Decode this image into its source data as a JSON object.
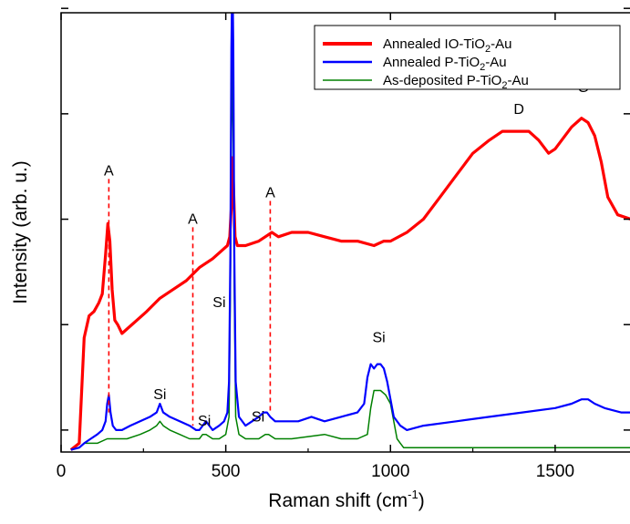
{
  "chart_data": {
    "type": "line",
    "title": "",
    "xlabel": "Raman shift (cm",
    "xlabel_sup": "-1",
    "xlabel_close": ")",
    "ylabel": "Intensity (arb. u.)",
    "xlim": [
      0,
      1730
    ],
    "ylim": [
      0,
      100
    ],
    "x_ticks": [
      0,
      500,
      1000,
      1500
    ],
    "x_tick_labels": [
      "0",
      "500",
      "1000",
      "1500"
    ],
    "y_tick_labels_shown": false,
    "grid": false,
    "legend_position": "top-right",
    "series": [
      {
        "name_parts": [
          "Annealed IO-TiO",
          "2",
          "-Au"
        ],
        "color": "#ff0000",
        "x": [
          30,
          55,
          70,
          85,
          100,
          115,
          125,
          135,
          142,
          148,
          155,
          163,
          172,
          185,
          200,
          230,
          260,
          300,
          340,
          380,
          420,
          460,
          490,
          505,
          512,
          517,
          520,
          523,
          528,
          535,
          560,
          600,
          620,
          640,
          660,
          700,
          750,
          800,
          850,
          900,
          950,
          980,
          1000,
          1050,
          1100,
          1150,
          1200,
          1250,
          1300,
          1340,
          1380,
          1420,
          1450,
          1480,
          1500,
          1520,
          1550,
          1580,
          1600,
          1620,
          1640,
          1660,
          1690,
          1730
        ],
        "y": [
          0.5,
          2,
          26,
          31,
          32,
          34,
          36,
          45,
          52,
          48,
          37,
          30,
          29,
          27,
          28,
          30,
          32,
          35,
          37,
          39,
          42,
          44,
          46,
          47,
          49,
          56,
          67,
          62,
          49,
          47,
          47,
          48,
          49,
          50,
          49,
          50,
          50,
          49,
          48,
          48,
          47,
          48,
          48,
          50,
          53,
          58,
          63,
          68,
          71,
          73,
          73,
          73,
          71,
          68,
          69,
          71,
          74,
          76,
          75,
          72,
          66,
          58,
          54,
          53
        ]
      },
      {
        "name_parts": [
          "Annealed P-TiO",
          "2",
          "-Au"
        ],
        "color": "#0000ff",
        "x": [
          30,
          55,
          70,
          90,
          110,
          125,
          135,
          140,
          145,
          150,
          157,
          167,
          185,
          210,
          240,
          270,
          290,
          300,
          310,
          330,
          360,
          390,
          410,
          420,
          430,
          440,
          450,
          460,
          480,
          495,
          505,
          510,
          514,
          517,
          520,
          523,
          526,
          530,
          540,
          560,
          580,
          600,
          615,
          625,
          635,
          650,
          680,
          720,
          760,
          800,
          850,
          900,
          920,
          930,
          940,
          950,
          960,
          970,
          980,
          990,
          1000,
          1010,
          1030,
          1050,
          1100,
          1200,
          1300,
          1400,
          1500,
          1550,
          1580,
          1600,
          1620,
          1650,
          1700,
          1730
        ],
        "y": [
          0.5,
          1,
          2,
          3,
          4,
          5,
          7,
          11,
          13,
          9,
          6,
          5,
          5,
          6,
          7,
          8,
          9,
          11,
          9,
          8,
          7,
          6,
          5,
          5,
          6,
          7,
          6,
          5,
          6,
          7,
          9,
          16,
          45,
          92,
          110,
          92,
          45,
          16,
          8,
          6,
          7,
          8,
          9,
          9,
          8,
          7,
          7,
          7,
          8,
          7,
          8,
          9,
          11,
          17,
          20,
          19,
          20,
          20,
          19,
          16,
          12,
          8,
          6,
          5,
          6,
          7,
          8,
          9,
          10,
          11,
          12,
          12,
          11,
          10,
          9,
          9
        ]
      },
      {
        "name_parts": [
          "As-deposited P-TiO",
          "2",
          "-Au"
        ],
        "color": "#008000",
        "x": [
          30,
          55,
          70,
          90,
          110,
          140,
          160,
          200,
          240,
          270,
          290,
          300,
          310,
          330,
          360,
          390,
          420,
          430,
          440,
          460,
          480,
          500,
          510,
          514,
          517,
          520,
          523,
          526,
          530,
          540,
          560,
          600,
          620,
          630,
          650,
          700,
          800,
          850,
          900,
          930,
          940,
          950,
          970,
          985,
          1000,
          1010,
          1020,
          1030,
          1040,
          1060,
          1100,
          1200,
          1300,
          1400,
          1500,
          1600,
          1700,
          1730
        ],
        "y": [
          0.5,
          1,
          2,
          2,
          2,
          3,
          3,
          3,
          4,
          5,
          6,
          7,
          6,
          5,
          4,
          3,
          3,
          4,
          4,
          3,
          3,
          4,
          8,
          35,
          70,
          90,
          70,
          35,
          8,
          4,
          3,
          3,
          4,
          4,
          3,
          3,
          4,
          3,
          3,
          4,
          10,
          14,
          14,
          13,
          11,
          7,
          3,
          2,
          1,
          1,
          1,
          1,
          1,
          1,
          1,
          1,
          1,
          1
        ]
      }
    ],
    "annotations": [
      {
        "text": "A",
        "x": 145,
        "y": 63,
        "line_from": 63,
        "line_to": 9
      },
      {
        "text": "A",
        "x": 400,
        "y": 52,
        "line_from": 52,
        "line_to": 6
      },
      {
        "text": "A",
        "x": 635,
        "y": 58,
        "line_from": 58,
        "line_to": 9
      },
      {
        "text": "Si",
        "x": 300,
        "y": 12
      },
      {
        "text": "Si",
        "x": 435,
        "y": 6
      },
      {
        "text": "Si",
        "x": 598,
        "y": 7
      },
      {
        "text": "Si",
        "x": 480,
        "y": 33
      },
      {
        "text": "Si",
        "x": 965,
        "y": 25
      },
      {
        "text": "D",
        "x": 1390,
        "y": 77
      },
      {
        "text": "G",
        "x": 1585,
        "y": 82
      }
    ]
  }
}
